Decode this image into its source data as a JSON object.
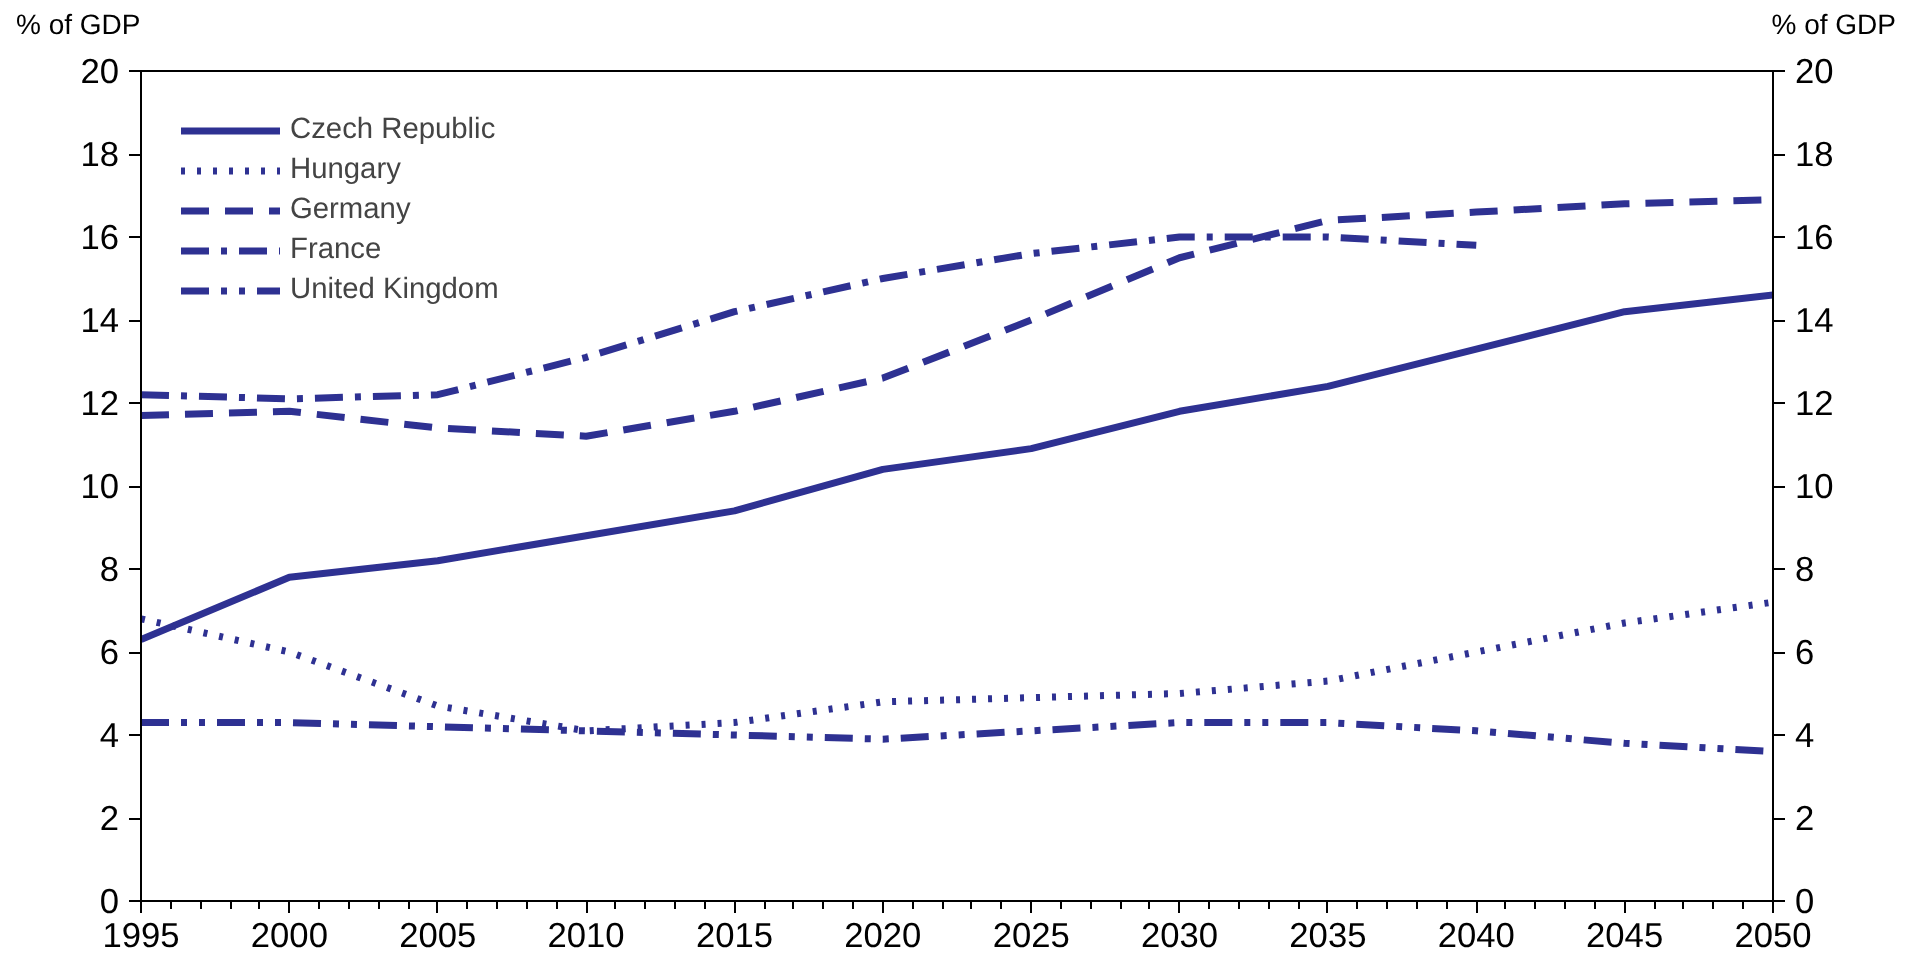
{
  "chart_data": {
    "type": "line",
    "ylabel": "% of GDP",
    "y2label": "% of GDP",
    "x": [
      1995,
      2000,
      2005,
      2010,
      2015,
      2020,
      2025,
      2030,
      2035,
      2040,
      2045,
      2050
    ],
    "series": [
      {
        "name": "Czech Republic",
        "color": "#2e3192",
        "line_style": "solid",
        "values": [
          6.3,
          7.8,
          8.2,
          8.8,
          9.4,
          10.4,
          10.9,
          11.8,
          12.4,
          13.3,
          14.2,
          14.6
        ]
      },
      {
        "name": "Hungary",
        "color": "#2e3192",
        "line_style": "dotted",
        "values": [
          6.8,
          6.0,
          4.7,
          4.1,
          4.3,
          4.8,
          4.9,
          5.0,
          5.3,
          6.0,
          6.7,
          7.2
        ]
      },
      {
        "name": "Germany",
        "color": "#2e3192",
        "line_style": "dashed",
        "values": [
          11.7,
          11.8,
          11.4,
          11.2,
          11.8,
          12.6,
          14.0,
          15.5,
          16.4,
          16.6,
          16.8,
          16.9
        ]
      },
      {
        "name": "France",
        "color": "#2e3192",
        "line_style": "dashdot",
        "values": [
          12.2,
          12.1,
          12.2,
          13.1,
          14.2,
          15.0,
          15.6,
          16.0,
          16.0,
          15.8,
          null,
          null
        ]
      },
      {
        "name": "United Kingdom",
        "color": "#2e3192",
        "line_style": "dashdotdot",
        "values": [
          4.3,
          4.3,
          4.2,
          4.1,
          4.0,
          3.9,
          4.1,
          4.3,
          4.3,
          4.1,
          3.8,
          3.6
        ]
      }
    ],
    "xlim": [
      1995,
      2050
    ],
    "xticks": [
      1995,
      2000,
      2005,
      2010,
      2015,
      2020,
      2025,
      2030,
      2035,
      2040,
      2045,
      2050
    ],
    "ylim": [
      0,
      20
    ],
    "yticks": [
      0,
      2,
      4,
      6,
      8,
      10,
      12,
      14,
      16,
      18,
      20
    ],
    "y2lim": [
      0,
      20
    ],
    "y2ticks": [
      0,
      2,
      4,
      6,
      8,
      10,
      12,
      14,
      16,
      18,
      20
    ],
    "grid": false,
    "legend": "top left",
    "marker": "none"
  }
}
